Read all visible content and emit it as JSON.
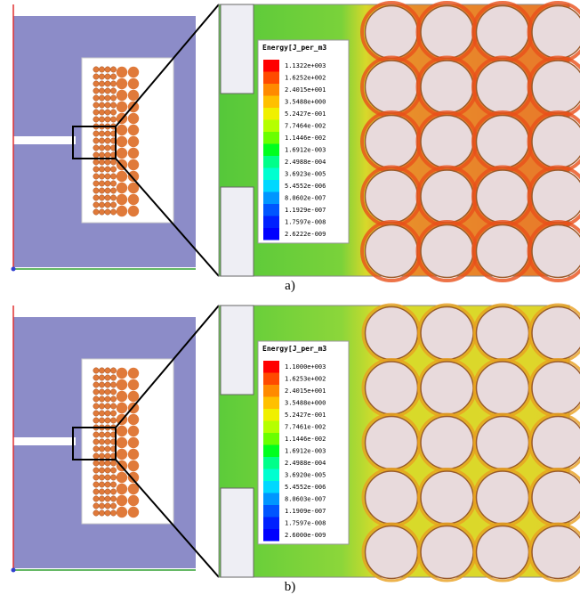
{
  "panels": [
    {
      "caption": "a)",
      "legend": {
        "title": "Energy[J_per_m3",
        "labels": [
          "1.1322e+003",
          "1.6252e+002",
          "2.4015e+001",
          "3.5488e+000",
          "5.2427e-001",
          "7.7464e-002",
          "1.1446e-002",
          "1.6912e-003",
          "2.4988e-004",
          "3.6923e-005",
          "5.4552e-006",
          "8.0602e-007",
          "1.1929e-007",
          "1.7597e-008",
          "2.6222e-009"
        ]
      }
    },
    {
      "caption": "b)",
      "legend": {
        "title": "Energy[J_per_m3",
        "labels": [
          "1.1000e+003",
          "1.6253e+002",
          "2.4015e+001",
          "3.5488e+000",
          "5.2427e-001",
          "7.7461e-002",
          "1.1446e-002",
          "1.6912e-003",
          "2.4988e-004",
          "3.6920e-005",
          "5.4552e-006",
          "8.0603e-007",
          "1.1909e-007",
          "1.7597e-008",
          "2.6000e-009"
        ]
      }
    }
  ]
}
